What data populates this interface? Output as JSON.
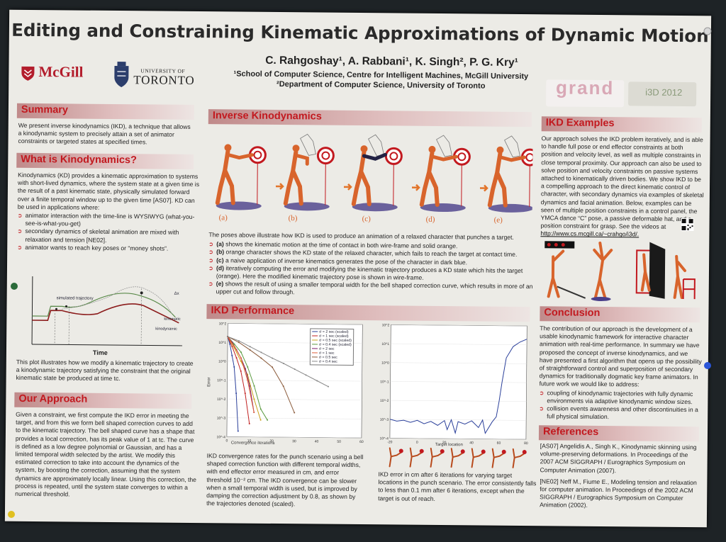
{
  "title": "Editing and Constraining Kinematic Approximations of Dynamic Motion",
  "authors": "C. Rahgoshay¹, A. Rabbani¹, K. Singh², P. G. Kry¹",
  "affiliations": [
    "¹School of Computer Science, Centre for Intelligent Machines, McGill University",
    "²Department of Computer Science, University of Toronto"
  ],
  "logos": {
    "mcgill": "McGill",
    "uoft_top": "UNIVERSITY OF",
    "uoft_main": "TORONTO",
    "grand": "grand",
    "i3d": "i3D 2012"
  },
  "summary": {
    "heading": "Summary",
    "text": "We present inverse kinodynamics (IKD), a technique that allows a kinodynamic system to precisely attain a set of animator constraints or targeted states at specified times."
  },
  "what_is_kd": {
    "heading": "What is Kinodynamics?",
    "text": "Kinodynamics (KD) provides a kinematic approximation to systems with short-lived dynamics, where the system state at a given time is the result of a past kinematic state, physically simulated forward over a finite temporal window up to the given time [AS07]. KD can be used in applications where:",
    "bullets": [
      "animator interaction with the time-line is WYSIWYG (what-you-see-is-what-you-get)",
      "secondary dynamics of skeletal animation are mixed with relaxation and tension [NE02].",
      "animator wants to reach key poses or “money shots”."
    ]
  },
  "traj_plot": {
    "labels": [
      "simulated trajectory",
      "kinematic",
      "kinodynamic",
      "Δx"
    ],
    "xlabel": "Time",
    "caption": "This plot illustrates how we modify a kinematic trajectory to create a kinodynamic trajectory satisfying the constraint that the original kinematic state be produced at time tc."
  },
  "approach": {
    "heading": "Our Approach",
    "text": "Given a constraint, we first compute the IKD error in meeting the target, and from this we form bell shaped correction curves to add to the kinematic trajectory. The bell shaped curve has a shape that provides a local correction, has its peak value of 1 at tc. The curve is defined as a low degree polynomial or Gaussian, and has a limited temporal width selected by the artist. We modify this estimated correction to take into account the dynamics of the system, by boosting the correction, assuming that the system dynamics are approximately locally linear. Using this correction, the process is repeated, until the system state converges to within a numerical threshold."
  },
  "ikd": {
    "heading": "Inverse Kinodynamics",
    "fig_labels": [
      "(a)",
      "(b)",
      "(c)",
      "(d)",
      "(e)"
    ],
    "intro": "The poses above illustrate how IKD is used to produce an animation of a relaxed character that punches a target.",
    "items": [
      {
        "label": "(a)",
        "text": "shows the kinematic motion at the time of contact in both wire-frame and solid orange."
      },
      {
        "label": "(b)",
        "text": "orange character shows the KD state of the relaxed character, which fails to reach the target at contact time."
      },
      {
        "label": "(c)",
        "text": "a naive application of inverse kinematics generates the pose of the character in dark blue."
      },
      {
        "label": "(d)",
        "text": "iteratively computing the error and modifying the kinematic trajectory produces a KD state which hits the target (orange). Here the modified kinematic trajectory pose is shown in wire-frame."
      },
      {
        "label": "(e)",
        "text": "shows the result of using a smaller temporal width for the bell shaped correction curve, which results in more of an upper cut and follow through."
      }
    ]
  },
  "performance": {
    "heading": "IKD Performance",
    "caption_left": "IKD convergence rates for the punch scenario using a bell shaped correction function with different temporal widths, with end effector error measured in cm, and error threshold 10⁻² cm. The IKD convergence can be slower when a small temporal width is used, but is improved by damping the correction adjustment by 0.8, as shown by the trajectories denoted (scaled).",
    "caption_right": "IKD error in cm after 6 iterations for varying target locations in the punch scenario. The error consistently falls to less than 0.1 mm after 6 iterations, except when the target is out of reach."
  },
  "examples": {
    "heading": "IKD Examples",
    "text": "Our approach solves the IKD problem iteratively, and is able to handle full pose or end effector constraints at both position and velocity level, as well as multiple constraints in close temporal proximity. Our approach can also be used to solve position and velocity constraints on passive systems attached to kinematically driven bodies. We show IKD to be a compelling approach to the direct kinematic control of character, with secondary dynamics via examples of skeletal dynamics and facial animation. Below, examples can be seen of multiple position constraints in a control panel, the YMCA dance “C” pose, a passive deformable hat, and a position constraint for grasp. See the videos at",
    "link": "http://www.cs.mcgill.ca/~crahgo/i3d/."
  },
  "conclusion": {
    "heading": "Conclusion",
    "text": "The contribution of our approach is the development of a usable kinodynamic framework for interactive character animation with real-time performance. In summary we have proposed the concept of inverse kinodynamics, and we have presented a first algorithm that opens up the possibility of straightforward control and superposition of secondary dynamics for traditionally dogmatic key frame animators. In future work we would like to address:",
    "bullets": [
      "coupling of kinodynamic trajectories with fully dynamic environments via adaptive kinodynamic window sizes.",
      "collision events awareness and other discontinuities in a full physical simulation."
    ]
  },
  "references": {
    "heading": "References",
    "items": [
      "[AS07] Angelidis A., Singh K., Kinodynamic skinning using volume-preserving deformations. In Proceedings of the 2007 ACM SIGGRAPH / Eurographics Symposium on Computer Animation (2007).",
      "[NE02] Neff M., Fiume E., Modeling tension and relaxation for computer animation. In Proceedings of the 2002 ACM SIGGRAPH / Eurographics Symposium on Computer Animation (2002)."
    ]
  },
  "colors": {
    "accent": "#c2191f",
    "figure_orange": "#d8642c",
    "figure_purple": "#4a3f8a"
  },
  "chart_data": [
    {
      "type": "line",
      "xlabel": "Convergence iterations",
      "ylabel": "Error",
      "log_y": true,
      "xlim": [
        0,
        60
      ],
      "ylim": [
        0.0001,
        100
      ],
      "legend_position": "top-right",
      "series": [
        {
          "name": "σ = 2 sec (scaled)",
          "color": "#2a3f9a",
          "x": [
            0,
            1,
            2,
            3,
            4,
            5
          ],
          "y": [
            20,
            8,
            2,
            0.5,
            0.02,
            0.0002
          ]
        },
        {
          "name": "σ = 1 sec (scaled)",
          "color": "#c02020",
          "x": [
            0,
            2,
            4,
            6,
            8,
            10
          ],
          "y": [
            20,
            6,
            1.5,
            0.3,
            0.02,
            0.0005
          ]
        },
        {
          "name": "σ = 0.5 sec (scaled)",
          "color": "#c9a018",
          "x": [
            0,
            3,
            6,
            9,
            12,
            15
          ],
          "y": [
            20,
            5,
            1,
            0.2,
            0.01,
            0.0008
          ]
        },
        {
          "name": "σ = 0.4 sec (scaled)",
          "color": "#5a9a40",
          "x": [
            0,
            3,
            6,
            9,
            12,
            15,
            18
          ],
          "y": [
            20,
            8,
            3,
            0.5,
            0.05,
            0.003,
            0.0008
          ]
        },
        {
          "name": "σ = 2 sec",
          "color": "#7a1a6a",
          "x": [
            0,
            2,
            4,
            6,
            8,
            10,
            12
          ],
          "y": [
            20,
            10,
            4,
            1.5,
            0.4,
            0.05,
            0.002
          ]
        },
        {
          "name": "σ = 1 sec",
          "color": "#e0603a",
          "x": [
            0,
            3,
            6,
            9,
            12
          ],
          "y": [
            20,
            6,
            1.5,
            0.1,
            0.002
          ]
        },
        {
          "name": "σ = 0.5 sec",
          "color": "#8a5a3a",
          "x": [
            0,
            5,
            10,
            15,
            20,
            25,
            30
          ],
          "y": [
            20,
            10,
            4,
            1.5,
            0.5,
            0.05,
            0.002
          ]
        },
        {
          "name": "σ = 0.4 sec",
          "color": "#888888",
          "x": [
            0,
            5,
            10,
            15,
            20,
            25,
            30,
            35,
            40,
            45
          ],
          "y": [
            20,
            12,
            6,
            3,
            1.5,
            0.8,
            0.4,
            0.2,
            0.1,
            0.05
          ]
        }
      ]
    },
    {
      "type": "line",
      "xlabel": "Target location",
      "ylabel": "",
      "log_y": true,
      "xlim": [
        -20,
        80
      ],
      "ylim": [
        0.0001,
        100
      ],
      "series": [
        {
          "color": "#2a3f9a",
          "x": [
            -20,
            -15,
            -10,
            -5,
            0,
            5,
            10,
            15,
            20,
            22,
            25,
            28,
            30,
            35,
            40,
            45,
            48,
            50,
            55,
            58,
            60,
            62,
            65,
            70,
            75,
            80
          ],
          "y": [
            0.001,
            0.0008,
            0.0009,
            0.0007,
            0.0009,
            0.0006,
            0.0008,
            0.0005,
            0.0009,
            0.0003,
            0.001,
            0.0002,
            0.0008,
            0.0006,
            0.0009,
            0.0004,
            0.001,
            0.0002,
            0.0008,
            0.0015,
            0.01,
            0.1,
            2,
            8,
            14,
            20
          ]
        }
      ]
    }
  ]
}
